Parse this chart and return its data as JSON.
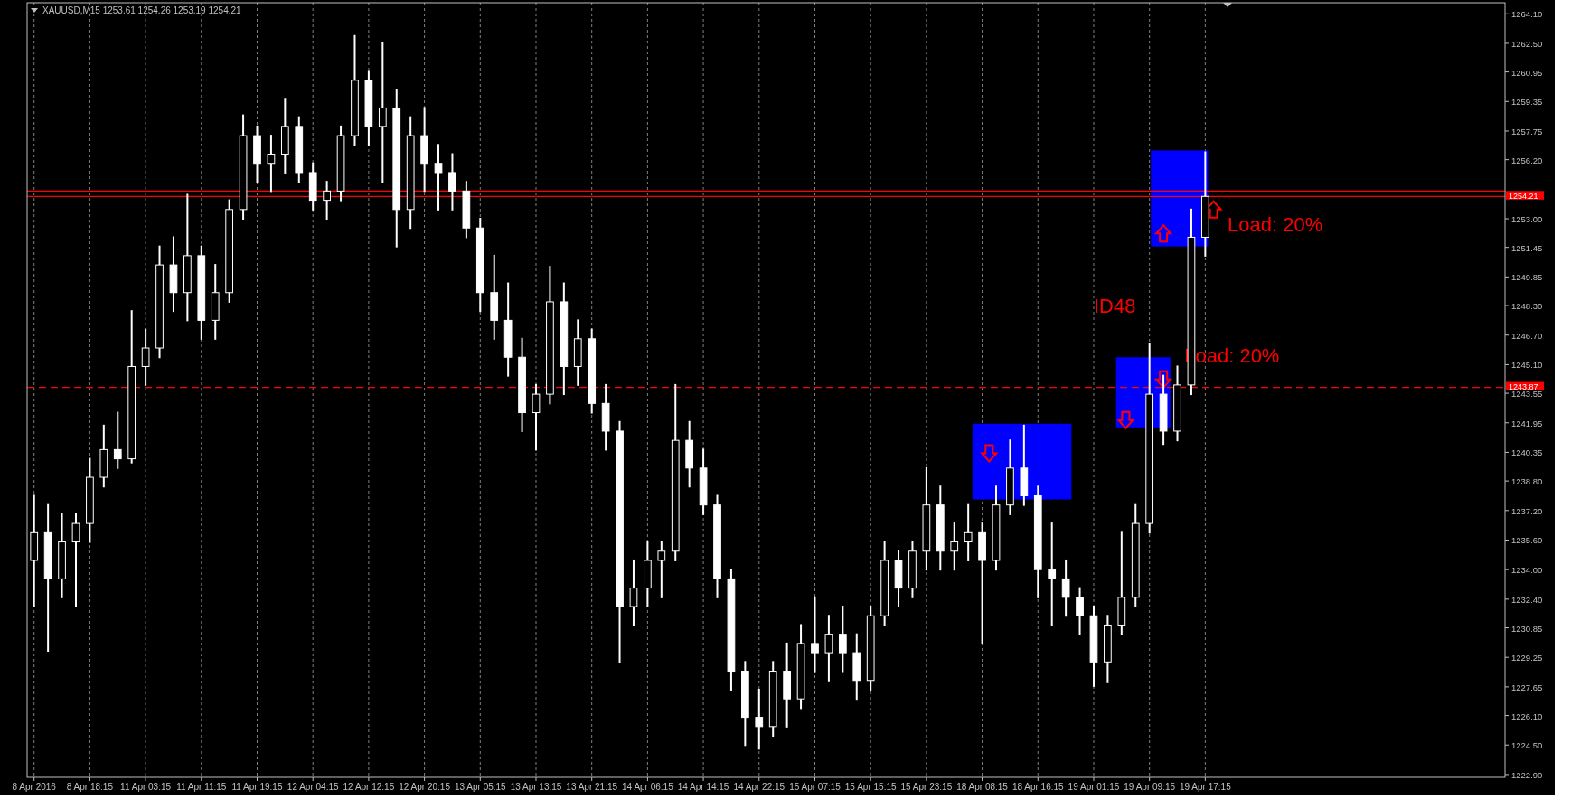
{
  "chart_data": {
    "type": "candlestick",
    "title": "XAUUSD,M15  1253.61 1254.26 1253.19 1254.21",
    "color": "#ffffff",
    "grid": "x",
    "categories": [
      "8 Apr 2016",
      null,
      null,
      null,
      "8 Apr 18:15",
      null,
      null,
      null,
      "11 Apr 03:15",
      null,
      null,
      null,
      "11 Apr 11:15",
      null,
      null,
      null,
      "11 Apr 19:15",
      null,
      null,
      null,
      "12 Apr 04:15",
      null,
      null,
      null,
      "12 Apr 12:15",
      null,
      null,
      null,
      "12 Apr 20:15",
      null,
      null,
      null,
      "13 Apr 05:15",
      null,
      null,
      null,
      "13 Apr 13:15",
      null,
      null,
      null,
      "13 Apr 21:15",
      null,
      null,
      null,
      "14 Apr 06:15",
      null,
      null,
      null,
      "14 Apr 14:15",
      null,
      null,
      null,
      "14 Apr 22:15",
      null,
      null,
      null,
      "15 Apr 07:15",
      null,
      null,
      null,
      "15 Apr 15:15",
      null,
      null,
      null,
      "15 Apr 23:15",
      null,
      null,
      null,
      "18 Apr 08:15",
      null,
      null,
      null,
      "18 Apr 16:15",
      null,
      null,
      null,
      "19 Apr 01:15",
      null,
      null,
      null,
      "19 Apr 09:15",
      null,
      null,
      null,
      "19 Apr 17:15",
      null,
      null,
      null,
      null,
      null,
      null,
      null,
      null,
      null,
      null,
      null,
      null,
      null,
      null,
      null,
      null,
      null,
      null,
      null,
      null,
      null
    ],
    "ohlc": [
      [
        1234.5,
        1238.0,
        1232.0,
        1236.0
      ],
      [
        1236.0,
        1237.5,
        1229.6,
        1233.5
      ],
      [
        1233.5,
        1237.0,
        1232.5,
        1235.5
      ],
      [
        1235.5,
        1237.0,
        1232.0,
        1236.5
      ],
      [
        1236.5,
        1240.0,
        1235.5,
        1239.0
      ],
      [
        1239.0,
        1241.8,
        1238.5,
        1240.5
      ],
      [
        1240.5,
        1242.5,
        1239.5,
        1240.0
      ],
      [
        1240.0,
        1248.0,
        1239.8,
        1245.0
      ],
      [
        1245.0,
        1247.0,
        1244.0,
        1246.0
      ],
      [
        1246.0,
        1251.5,
        1245.5,
        1250.5
      ],
      [
        1250.5,
        1252.0,
        1248.0,
        1249.0
      ],
      [
        1249.0,
        1254.3,
        1247.5,
        1251.0
      ],
      [
        1251.0,
        1251.5,
        1246.5,
        1247.5
      ],
      [
        1247.5,
        1250.5,
        1246.5,
        1249.0
      ],
      [
        1249.0,
        1254.0,
        1248.5,
        1253.5
      ],
      [
        1253.5,
        1258.6,
        1253.0,
        1257.5
      ],
      [
        1257.5,
        1258.0,
        1255.0,
        1256.0
      ],
      [
        1256.0,
        1257.5,
        1254.5,
        1256.5
      ],
      [
        1256.5,
        1259.5,
        1255.5,
        1258.0
      ],
      [
        1258.0,
        1258.5,
        1255.0,
        1255.5
      ],
      [
        1255.5,
        1256.0,
        1253.5,
        1254.0
      ],
      [
        1254.0,
        1255.0,
        1253.0,
        1254.5
      ],
      [
        1254.5,
        1258.0,
        1254.0,
        1257.5
      ],
      [
        1257.5,
        1262.9,
        1257.0,
        1260.5
      ],
      [
        1260.5,
        1261.0,
        1257.0,
        1258.0
      ],
      [
        1258.0,
        1262.5,
        1255.0,
        1259.0
      ],
      [
        1259.0,
        1260.0,
        1251.5,
        1253.5
      ],
      [
        1253.5,
        1258.5,
        1252.5,
        1257.5
      ],
      [
        1257.5,
        1259.0,
        1254.5,
        1256.0
      ],
      [
        1256.0,
        1257.0,
        1253.5,
        1255.5
      ],
      [
        1255.5,
        1256.5,
        1253.5,
        1254.5
      ],
      [
        1254.5,
        1255.0,
        1252.0,
        1252.5
      ],
      [
        1252.5,
        1253.0,
        1248.0,
        1249.0
      ],
      [
        1249.0,
        1251.0,
        1246.5,
        1247.5
      ],
      [
        1247.5,
        1249.5,
        1244.5,
        1245.5
      ],
      [
        1245.5,
        1246.5,
        1241.5,
        1242.5
      ],
      [
        1242.5,
        1244.0,
        1240.5,
        1243.5
      ],
      [
        1243.5,
        1250.4,
        1243.0,
        1248.5
      ],
      [
        1248.5,
        1249.5,
        1243.5,
        1245.0
      ],
      [
        1245.0,
        1247.5,
        1244.0,
        1246.5
      ],
      [
        1246.5,
        1247.0,
        1242.5,
        1243.0
      ],
      [
        1243.0,
        1244.0,
        1240.5,
        1241.5
      ],
      [
        1241.5,
        1242.0,
        1229.0,
        1232.0
      ],
      [
        1232.0,
        1234.5,
        1231.0,
        1233.0
      ],
      [
        1233.0,
        1235.5,
        1232.0,
        1234.5
      ],
      [
        1234.5,
        1235.5,
        1232.5,
        1235.0
      ],
      [
        1235.0,
        1244.0,
        1234.5,
        1241.0
      ],
      [
        1241.0,
        1242.0,
        1238.5,
        1239.5
      ],
      [
        1239.5,
        1240.5,
        1237.0,
        1237.5
      ],
      [
        1237.5,
        1238.0,
        1232.5,
        1233.5
      ],
      [
        1233.5,
        1234.0,
        1227.5,
        1228.5
      ],
      [
        1228.5,
        1229.0,
        1224.5,
        1226.0
      ],
      [
        1226.0,
        1227.5,
        1224.3,
        1225.5
      ],
      [
        1225.5,
        1229.0,
        1225.0,
        1228.5
      ],
      [
        1228.5,
        1230.0,
        1225.5,
        1227.0
      ],
      [
        1227.0,
        1231.0,
        1226.5,
        1230.0
      ],
      [
        1230.0,
        1232.5,
        1228.5,
        1229.5
      ],
      [
        1229.5,
        1231.5,
        1228.0,
        1230.5
      ],
      [
        1230.5,
        1232.0,
        1228.5,
        1229.5
      ],
      [
        1229.5,
        1230.5,
        1227.0,
        1228.0
      ],
      [
        1228.0,
        1232.0,
        1227.5,
        1231.5
      ],
      [
        1231.5,
        1235.5,
        1231.0,
        1234.5
      ],
      [
        1234.5,
        1235.0,
        1232.0,
        1233.0
      ],
      [
        1233.0,
        1235.5,
        1232.5,
        1235.0
      ],
      [
        1235.0,
        1239.5,
        1234.0,
        1237.5
      ],
      [
        1237.5,
        1238.5,
        1234.0,
        1235.0
      ],
      [
        1235.0,
        1236.5,
        1234.0,
        1235.5
      ],
      [
        1235.5,
        1237.5,
        1234.5,
        1236.0
      ],
      [
        1236.0,
        1236.5,
        1230.0,
        1234.5
      ],
      [
        1234.5,
        1238.5,
        1234.0,
        1237.5
      ],
      [
        1237.5,
        1241.0,
        1237.0,
        1239.5
      ],
      [
        1239.5,
        1241.8,
        1237.5,
        1238.0
      ],
      [
        1238.0,
        1238.5,
        1232.5,
        1234.0
      ],
      [
        1234.0,
        1236.5,
        1231.0,
        1233.5
      ],
      [
        1233.5,
        1234.5,
        1231.5,
        1232.5
      ],
      [
        1232.5,
        1233.0,
        1230.5,
        1231.5
      ],
      [
        1231.5,
        1232.0,
        1227.7,
        1229.0
      ],
      [
        1229.0,
        1231.5,
        1227.9,
        1231.0
      ],
      [
        1231.0,
        1236.0,
        1230.5,
        1232.5
      ],
      [
        1232.5,
        1237.5,
        1232.0,
        1236.5
      ],
      [
        1236.5,
        1246.2,
        1236.0,
        1243.5
      ],
      [
        1243.5,
        1244.5,
        1240.8,
        1241.5
      ],
      [
        1241.5,
        1245.0,
        1241.0,
        1244.0
      ],
      [
        1244.0,
        1253.5,
        1243.5,
        1252.0
      ],
      [
        1252.0,
        1256.6,
        1251.0,
        1254.21
      ],
      null,
      null,
      null,
      null,
      null,
      null,
      null,
      null,
      null,
      null,
      null,
      null,
      null,
      null,
      null,
      null,
      null,
      null,
      null,
      null,
      null
    ],
    "ylim": [
      1222.75,
      1264.7
    ],
    "yticks": [
      {
        "value": 1222.9,
        "label": "1222.90"
      },
      {
        "value": 1224.5,
        "label": "1224.50"
      },
      {
        "value": 1226.1,
        "label": "1226.10"
      },
      {
        "value": 1227.65,
        "label": "1227.65"
      },
      {
        "value": 1229.25,
        "label": "1229.25"
      },
      {
        "value": 1230.85,
        "label": "1230.85"
      },
      {
        "value": 1232.4,
        "label": "1232.40"
      },
      {
        "value": 1234.0,
        "label": "1234.00"
      },
      {
        "value": 1235.6,
        "label": "1235.60"
      },
      {
        "value": 1237.2,
        "label": "1237.20"
      },
      {
        "value": 1238.8,
        "label": "1238.80"
      },
      {
        "value": 1240.35,
        "label": "1240.35"
      },
      {
        "value": 1241.95,
        "label": "1241.95"
      },
      {
        "value": 1243.55,
        "label": "1243.55"
      },
      {
        "value": 1245.1,
        "label": "1245.10"
      },
      {
        "value": 1246.7,
        "label": "1246.70"
      },
      {
        "value": 1248.3,
        "label": "1248.30"
      },
      {
        "value": 1249.85,
        "label": "1249.85"
      },
      {
        "value": 1251.45,
        "label": "1251.45"
      },
      {
        "value": 1253.0,
        "label": "1253.00"
      },
      {
        "value": 1256.2,
        "label": "1256.20"
      },
      {
        "value": 1257.75,
        "label": "1257.75"
      },
      {
        "value": 1259.35,
        "label": "1259.35"
      },
      {
        "value": 1260.95,
        "label": "1260.95"
      },
      {
        "value": 1262.5,
        "label": "1262.50"
      },
      {
        "value": 1264.1,
        "label": "1264.10"
      }
    ],
    "ref_lines": [
      {
        "axis": "y",
        "value": 1254.5,
        "label": null,
        "color": "#ff0000",
        "line_style": "solid"
      },
      {
        "axis": "y",
        "value": 1254.21,
        "label": "1254.21",
        "color": "#ff0000",
        "line_style": "solid"
      },
      {
        "axis": "y",
        "value": 1243.87,
        "label": "1243.87",
        "color": "#ff0000",
        "line_style": "dashed"
      }
    ],
    "annotations": [
      "Load: 20%",
      "ID48",
      "Load: 20%"
    ]
  }
}
